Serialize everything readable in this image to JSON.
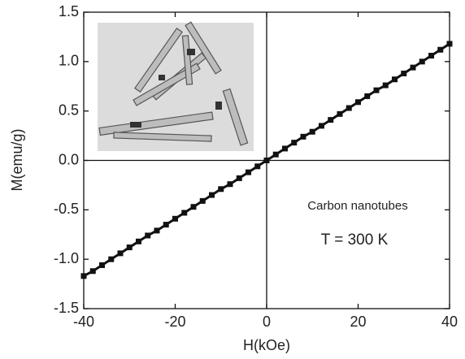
{
  "chart_data": {
    "type": "scatter",
    "x_label": "H(kOe)",
    "y_label": "M(emu/g)",
    "annotations": [
      "Carbon nanotubes",
      "T = 300 K"
    ],
    "x": [
      -40,
      -38,
      -36,
      -34,
      -32,
      -30,
      -28,
      -26,
      -24,
      -22,
      -20,
      -18,
      -16,
      -14,
      -12,
      -10,
      -8,
      -6,
      -4,
      -2,
      0,
      2,
      4,
      6,
      8,
      10,
      12,
      14,
      16,
      18,
      20,
      22,
      24,
      26,
      28,
      30,
      32,
      34,
      36,
      38,
      40
    ],
    "values": [
      -1.17,
      -1.12,
      -1.06,
      -1.0,
      -0.94,
      -0.88,
      -0.82,
      -0.76,
      -0.71,
      -0.65,
      -0.59,
      -0.53,
      -0.47,
      -0.41,
      -0.35,
      -0.29,
      -0.24,
      -0.18,
      -0.12,
      -0.06,
      0,
      0.06,
      0.12,
      0.18,
      0.24,
      0.29,
      0.35,
      0.41,
      0.47,
      0.53,
      0.59,
      0.65,
      0.71,
      0.76,
      0.82,
      0.88,
      0.94,
      1.0,
      1.06,
      1.12,
      1.18
    ],
    "color": "#111111",
    "xlim": [
      -40,
      40
    ],
    "xticks": [
      -40,
      -20,
      0,
      20,
      40
    ],
    "ylim": [
      -1.5,
      1.5
    ],
    "yticks": [
      -1.5,
      {
        "value": -1,
        "label": "-1.0"
      },
      -0.5,
      {
        "value": 0,
        "label": "0.0"
      },
      0.5,
      {
        "value": 1,
        "label": "1.0"
      },
      1.5
    ]
  }
}
